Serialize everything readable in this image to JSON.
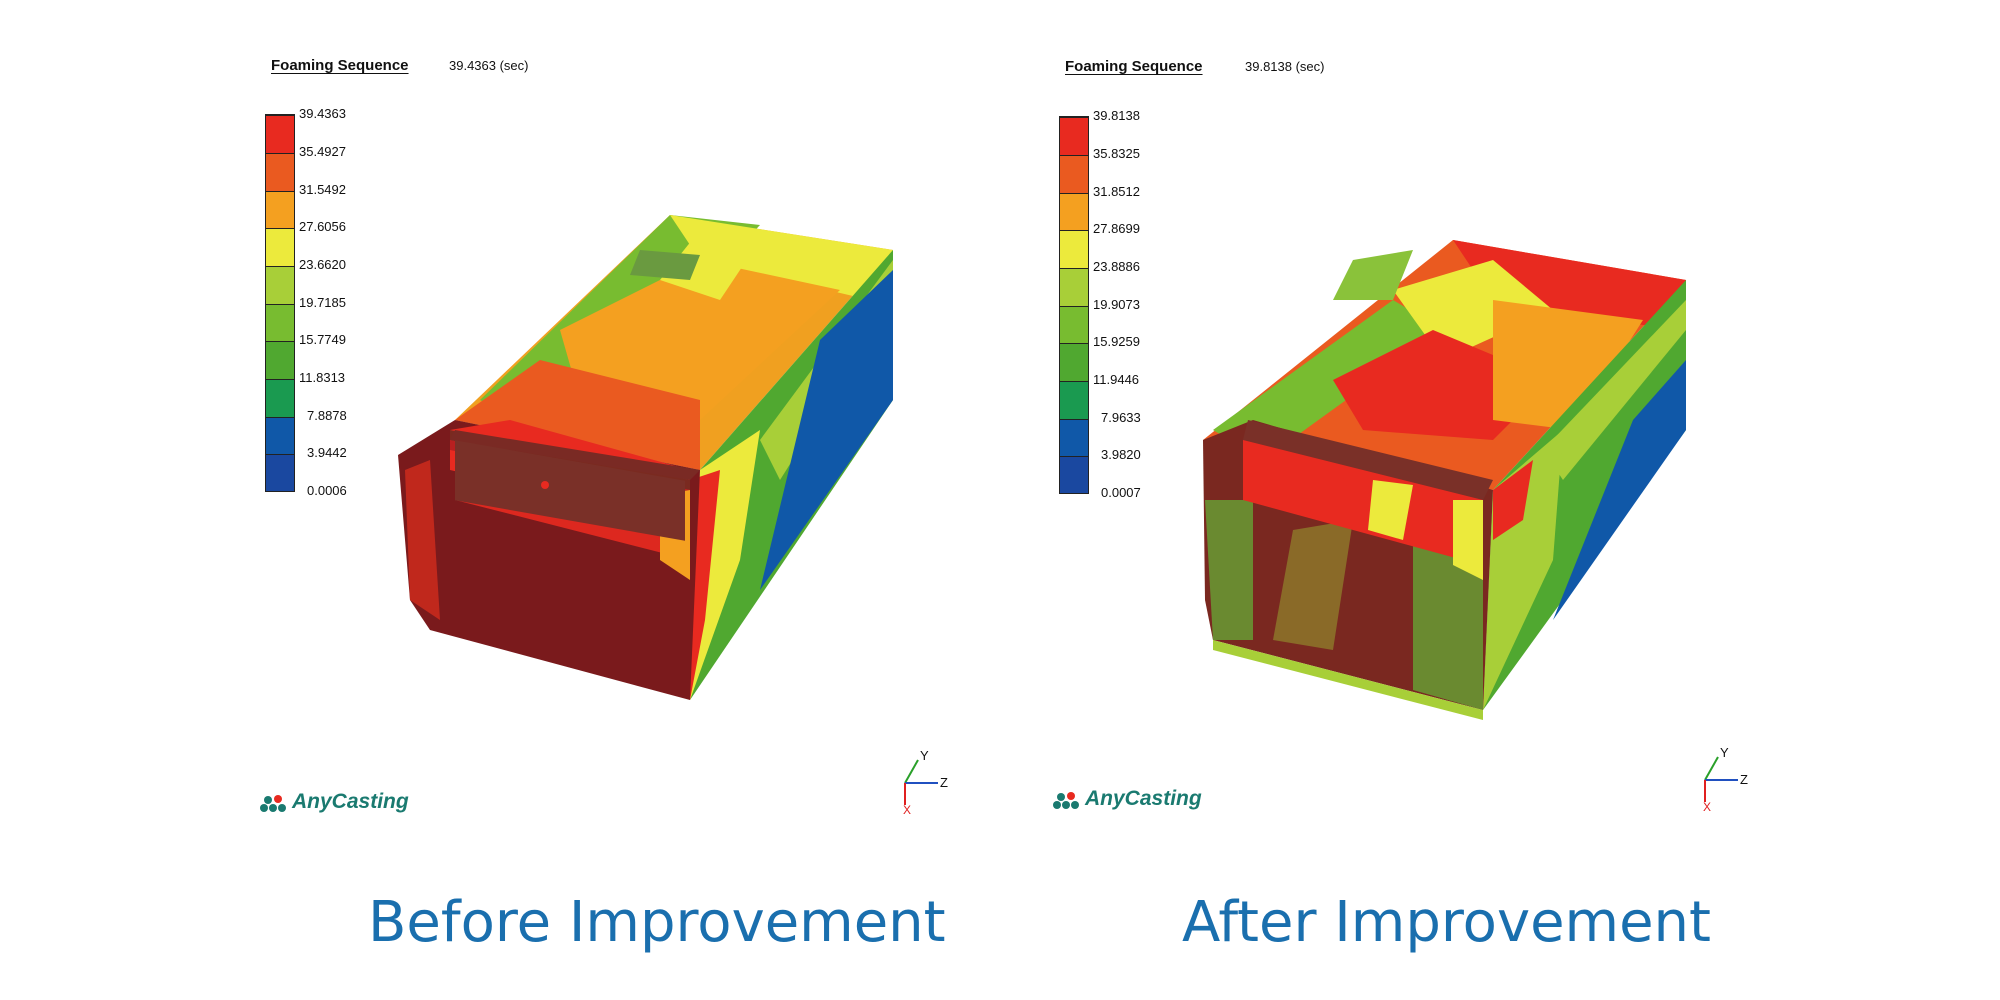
{
  "panels": [
    {
      "title": "Foaming Sequence",
      "time": "39.4363 (sec)",
      "legend": [
        "39.4363",
        "35.4927",
        "31.5492",
        "27.6056",
        "23.6620",
        "19.7185",
        "15.7749",
        "11.8313",
        "7.8878",
        "3.9442",
        "0.0006"
      ],
      "logo": "AnyCasting",
      "axes": {
        "y": "Y",
        "z": "Z",
        "x": "X"
      },
      "caption": "Before Improvement"
    },
    {
      "title": "Foaming Sequence",
      "time": "39.8138 (sec)",
      "legend": [
        "39.8138",
        "35.8325",
        "31.8512",
        "27.8699",
        "23.8886",
        "19.9073",
        "15.9259",
        "11.9446",
        "7.9633",
        "3.9820",
        "0.0007"
      ],
      "logo": "AnyCasting",
      "axes": {
        "y": "Y",
        "z": "Z",
        "x": "X"
      },
      "caption": "After Improvement"
    }
  ],
  "colors": {
    "scale": [
      "#e82a20",
      "#ea5a20",
      "#f4a020",
      "#ecea3c",
      "#a8cf38",
      "#78bc30",
      "#50a830",
      "#1a9a50",
      "#1058a8",
      "#1a48a0"
    ],
    "caption": "#1a6fae",
    "logo": "#1a7a70"
  }
}
